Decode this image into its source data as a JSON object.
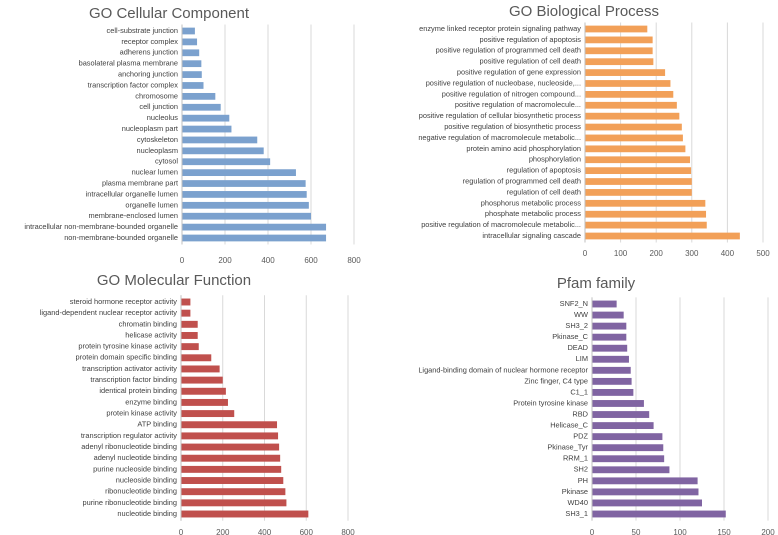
{
  "chart_data": [
    {
      "type": "bar",
      "orientation": "horizontal",
      "title": "GO Cellular Component",
      "color": "#7BA1CE",
      "xlim": [
        0,
        800
      ],
      "xticks": [
        0,
        200,
        400,
        600,
        800
      ],
      "categories": [
        "cell-substrate junction",
        "receptor complex",
        "adherens junction",
        "basolateral plasma membrane",
        "anchoring junction",
        "transcription factor complex",
        "chromosome",
        "cell junction",
        "nucleolus",
        "nucleoplasm part",
        "cytoskeleton",
        "nucleoplasm",
        "cytosol",
        "nuclear lumen",
        "plasma membrane part",
        "intracellular organelle lumen",
        "organelle lumen",
        "membrane-enclosed lumen",
        "intracellular non-membrane-bounded organelle",
        "non-membrane-bounded organelle"
      ],
      "values": [
        60,
        70,
        80,
        90,
        92,
        100,
        155,
        180,
        220,
        230,
        350,
        380,
        410,
        530,
        575,
        580,
        590,
        600,
        670,
        670
      ]
    },
    {
      "type": "bar",
      "orientation": "horizontal",
      "title": "GO Biological Process",
      "color": "#F2A058",
      "xlim": [
        0,
        500
      ],
      "xticks": [
        0,
        100,
        200,
        300,
        400,
        500
      ],
      "categories": [
        "enzyme linked receptor protein signaling pathway",
        "positive regulation of apoptosis",
        "positive regulation of programmed cell death",
        "positive regulation of cell death",
        "positive regulation of gene expression",
        "positive regulation of nucleobase, nucleoside,...",
        "positive regulation of nitrogen compound...",
        "positive regulation of macromolecule...",
        "positive regulation of cellular biosynthetic process",
        "positive regulation of biosynthetic process",
        "negative regulation of macromolecule metabolic...",
        "protein amino acid phosphorylation",
        "phosphorylation",
        "regulation of apoptosis",
        "regulation of programmed cell death",
        "regulation of cell death",
        "phosphorus metabolic process",
        "phosphate metabolic process",
        "positive regulation of macromolecule metabolic...",
        "intracellular signaling cascade"
      ],
      "values": [
        175,
        190,
        190,
        192,
        225,
        240,
        248,
        258,
        265,
        272,
        275,
        282,
        295,
        298,
        300,
        300,
        338,
        340,
        342,
        435
      ]
    },
    {
      "type": "bar",
      "orientation": "horizontal",
      "title": "GO Molecular Function",
      "color": "#C0504D",
      "xlim": [
        0,
        800
      ],
      "xticks": [
        0,
        200,
        400,
        600,
        800
      ],
      "categories": [
        "steroid hormone receptor activity",
        "ligand-dependent nuclear receptor activity",
        "chromatin binding",
        "helicase activity",
        "protein tyrosine kinase activity",
        "protein domain specific binding",
        "transcription activator activity",
        "transcription factor binding",
        "identical protein binding",
        "enzyme binding",
        "protein kinase activity",
        "ATP binding",
        "transcription regulator activity",
        "adenyl ribonucleotide binding",
        "adenyl nucleotide binding",
        "purine nucleoside binding",
        "nucleoside binding",
        "ribonucleotide binding",
        "purine ribonucleotide binding",
        "nucleotide binding"
      ],
      "values": [
        45,
        45,
        80,
        80,
        85,
        145,
        185,
        200,
        215,
        225,
        255,
        460,
        465,
        470,
        475,
        480,
        490,
        500,
        505,
        610
      ]
    },
    {
      "type": "bar",
      "orientation": "horizontal",
      "title": "Pfam family",
      "color": "#8064A2",
      "xlim": [
        0,
        200
      ],
      "xticks": [
        0,
        50,
        100,
        150,
        200
      ],
      "categories": [
        "SNF2_N",
        "WW",
        "SH3_2",
        "Pkinase_C",
        "DEAD",
        "LIM",
        "Ligand-binding domain of nuclear hormone receptor",
        "Zinc finger, C4 type",
        "C1_1",
        "Protein tyrosine kinase",
        "RBD",
        "Helicase_C",
        "PDZ",
        "Pkinase_Tyr",
        "RRM_1",
        "SH2",
        "PH",
        "Pkinase",
        "WD40",
        "SH3_1"
      ],
      "values": [
        28,
        36,
        39,
        39,
        40,
        42,
        44,
        45,
        47,
        59,
        65,
        70,
        80,
        81,
        82,
        88,
        120,
        121,
        125,
        152
      ]
    }
  ]
}
